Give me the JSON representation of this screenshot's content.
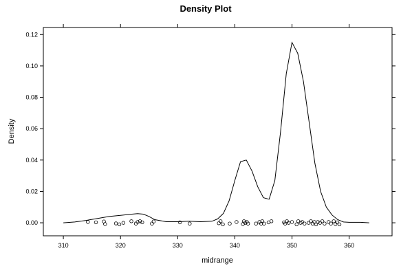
{
  "chart_data": {
    "type": "line",
    "title": "Density Plot",
    "xlabel": "midrange",
    "ylabel": "Density",
    "xlim": [
      306.5,
      367.5
    ],
    "ylim": [
      -0.0083,
      0.1245
    ],
    "x_ticks": [
      310,
      320,
      330,
      340,
      350,
      360
    ],
    "y_ticks": [
      0.0,
      0.02,
      0.04,
      0.06,
      0.08,
      0.1,
      0.12
    ],
    "x_tick_labels": [
      "310",
      "320",
      "330",
      "340",
      "350",
      "360"
    ],
    "y_tick_labels": [
      "0.00",
      "0.02",
      "0.04",
      "0.06",
      "0.08",
      "0.10",
      "0.12"
    ],
    "grid": false,
    "series": [
      {
        "kind": "density-curve",
        "x": [
          310,
          312,
          314,
          316,
          318,
          320,
          322,
          323,
          324,
          325,
          326,
          328,
          330,
          332,
          334,
          336,
          337,
          338,
          339,
          340,
          341,
          342,
          343,
          344,
          345,
          346,
          347,
          348,
          349,
          350,
          351,
          352,
          353,
          354,
          355,
          356,
          357,
          358,
          359,
          360,
          361,
          362,
          363.5
        ],
        "y": [
          0.0,
          0.0005,
          0.0015,
          0.0028,
          0.004,
          0.0047,
          0.0055,
          0.0058,
          0.0055,
          0.004,
          0.002,
          0.0007,
          0.0007,
          0.001,
          0.0007,
          0.001,
          0.0025,
          0.006,
          0.014,
          0.027,
          0.039,
          0.04,
          0.033,
          0.023,
          0.016,
          0.015,
          0.027,
          0.058,
          0.095,
          0.115,
          0.108,
          0.09,
          0.064,
          0.038,
          0.02,
          0.01,
          0.005,
          0.002,
          0.0005,
          0.0003,
          0.0003,
          0.0003,
          0.0
        ]
      }
    ],
    "rug_points": [
      {
        "x": 314.3,
        "y": 0.0005
      },
      {
        "x": 315.7,
        "y": 0.0003
      },
      {
        "x": 317.1,
        "y": 0.0008
      },
      {
        "x": 317.3,
        "y": -0.0008
      },
      {
        "x": 319.2,
        "y": -0.0004
      },
      {
        "x": 319.8,
        "y": -0.001
      },
      {
        "x": 320.5,
        "y": 0.0
      },
      {
        "x": 321.9,
        "y": 0.001
      },
      {
        "x": 322.7,
        "y": -0.0005
      },
      {
        "x": 323.0,
        "y": 0.0005
      },
      {
        "x": 323.4,
        "y": 0.001
      },
      {
        "x": 323.8,
        "y": 0.0003
      },
      {
        "x": 325.5,
        "y": -0.0005
      },
      {
        "x": 325.8,
        "y": 0.0008
      },
      {
        "x": 330.4,
        "y": 0.0003
      },
      {
        "x": 332.1,
        "y": -0.0005
      },
      {
        "x": 337.2,
        "y": -0.0003
      },
      {
        "x": 337.5,
        "y": 0.001
      },
      {
        "x": 337.9,
        "y": -0.001
      },
      {
        "x": 339.1,
        "y": -0.0005
      },
      {
        "x": 340.3,
        "y": 0.0005
      },
      {
        "x": 341.4,
        "y": -0.0008
      },
      {
        "x": 341.6,
        "y": 0.001
      },
      {
        "x": 341.8,
        "y": 0.0
      },
      {
        "x": 342.1,
        "y": 0.0005
      },
      {
        "x": 342.3,
        "y": -0.0005
      },
      {
        "x": 343.7,
        "y": -0.0005
      },
      {
        "x": 344.3,
        "y": 0.0005
      },
      {
        "x": 344.6,
        "y": -0.0005
      },
      {
        "x": 344.8,
        "y": 0.001
      },
      {
        "x": 345.1,
        "y": -0.0005
      },
      {
        "x": 345.9,
        "y": 0.0003
      },
      {
        "x": 346.4,
        "y": 0.001
      },
      {
        "x": 348.6,
        "y": 0.0003
      },
      {
        "x": 348.8,
        "y": -0.0005
      },
      {
        "x": 349.1,
        "y": 0.001
      },
      {
        "x": 349.4,
        "y": 0.0
      },
      {
        "x": 350.0,
        "y": 0.0005
      },
      {
        "x": 350.8,
        "y": -0.001
      },
      {
        "x": 351.1,
        "y": 0.001
      },
      {
        "x": 351.5,
        "y": 0.0
      },
      {
        "x": 351.8,
        "y": 0.0005
      },
      {
        "x": 352.2,
        "y": -0.0005
      },
      {
        "x": 352.9,
        "y": 0.0
      },
      {
        "x": 353.3,
        "y": 0.001
      },
      {
        "x": 353.6,
        "y": -0.0005
      },
      {
        "x": 353.9,
        "y": 0.0005
      },
      {
        "x": 354.2,
        "y": -0.001
      },
      {
        "x": 354.5,
        "y": 0.0005
      },
      {
        "x": 354.9,
        "y": 0.0
      },
      {
        "x": 355.3,
        "y": 0.001
      },
      {
        "x": 355.7,
        "y": -0.0005
      },
      {
        "x": 356.4,
        "y": 0.0005
      },
      {
        "x": 356.8,
        "y": -0.0005
      },
      {
        "x": 357.3,
        "y": 0.001
      },
      {
        "x": 357.6,
        "y": -0.0008
      },
      {
        "x": 357.9,
        "y": 0.0003
      },
      {
        "x": 358.3,
        "y": -0.001
      }
    ]
  }
}
